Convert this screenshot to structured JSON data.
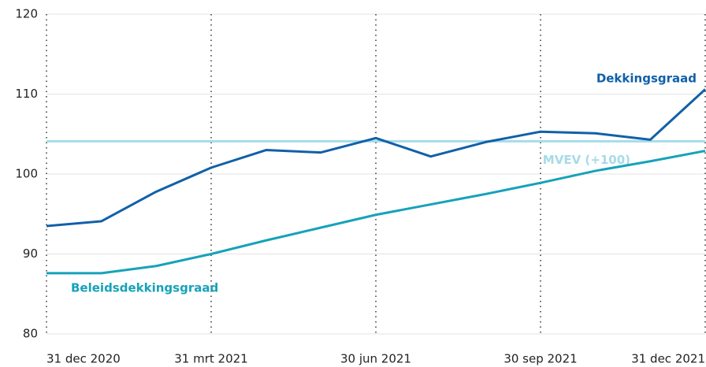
{
  "chart_data": {
    "type": "line",
    "categories": [
      "31 dec 2020",
      null,
      null,
      "31 mrt 2021",
      null,
      null,
      "30 jun 2021",
      null,
      null,
      "30 sep 2021",
      null,
      null,
      "31 dec 2021"
    ],
    "series": [
      {
        "name": "Dekkingsgraad",
        "color": "#1160a8",
        "values": [
          93.5,
          94.1,
          97.8,
          100.8,
          103.0,
          102.7,
          104.5,
          102.2,
          104.0,
          105.3,
          105.1,
          104.3,
          110.6
        ]
      },
      {
        "name": "Beleidsdekkingsgraad",
        "color": "#16a2b9",
        "values": [
          87.6,
          87.6,
          88.5,
          90.0,
          91.7,
          93.3,
          94.9,
          96.2,
          97.5,
          98.9,
          100.4,
          101.6,
          102.9
        ]
      }
    ],
    "reference_lines": [
      {
        "name": "MVEV (+100)",
        "value": 104.1,
        "color": "#a6dbe8"
      }
    ],
    "ylim": [
      80,
      120
    ],
    "yticks": [
      80,
      90,
      100,
      110,
      120
    ],
    "grid": true
  }
}
